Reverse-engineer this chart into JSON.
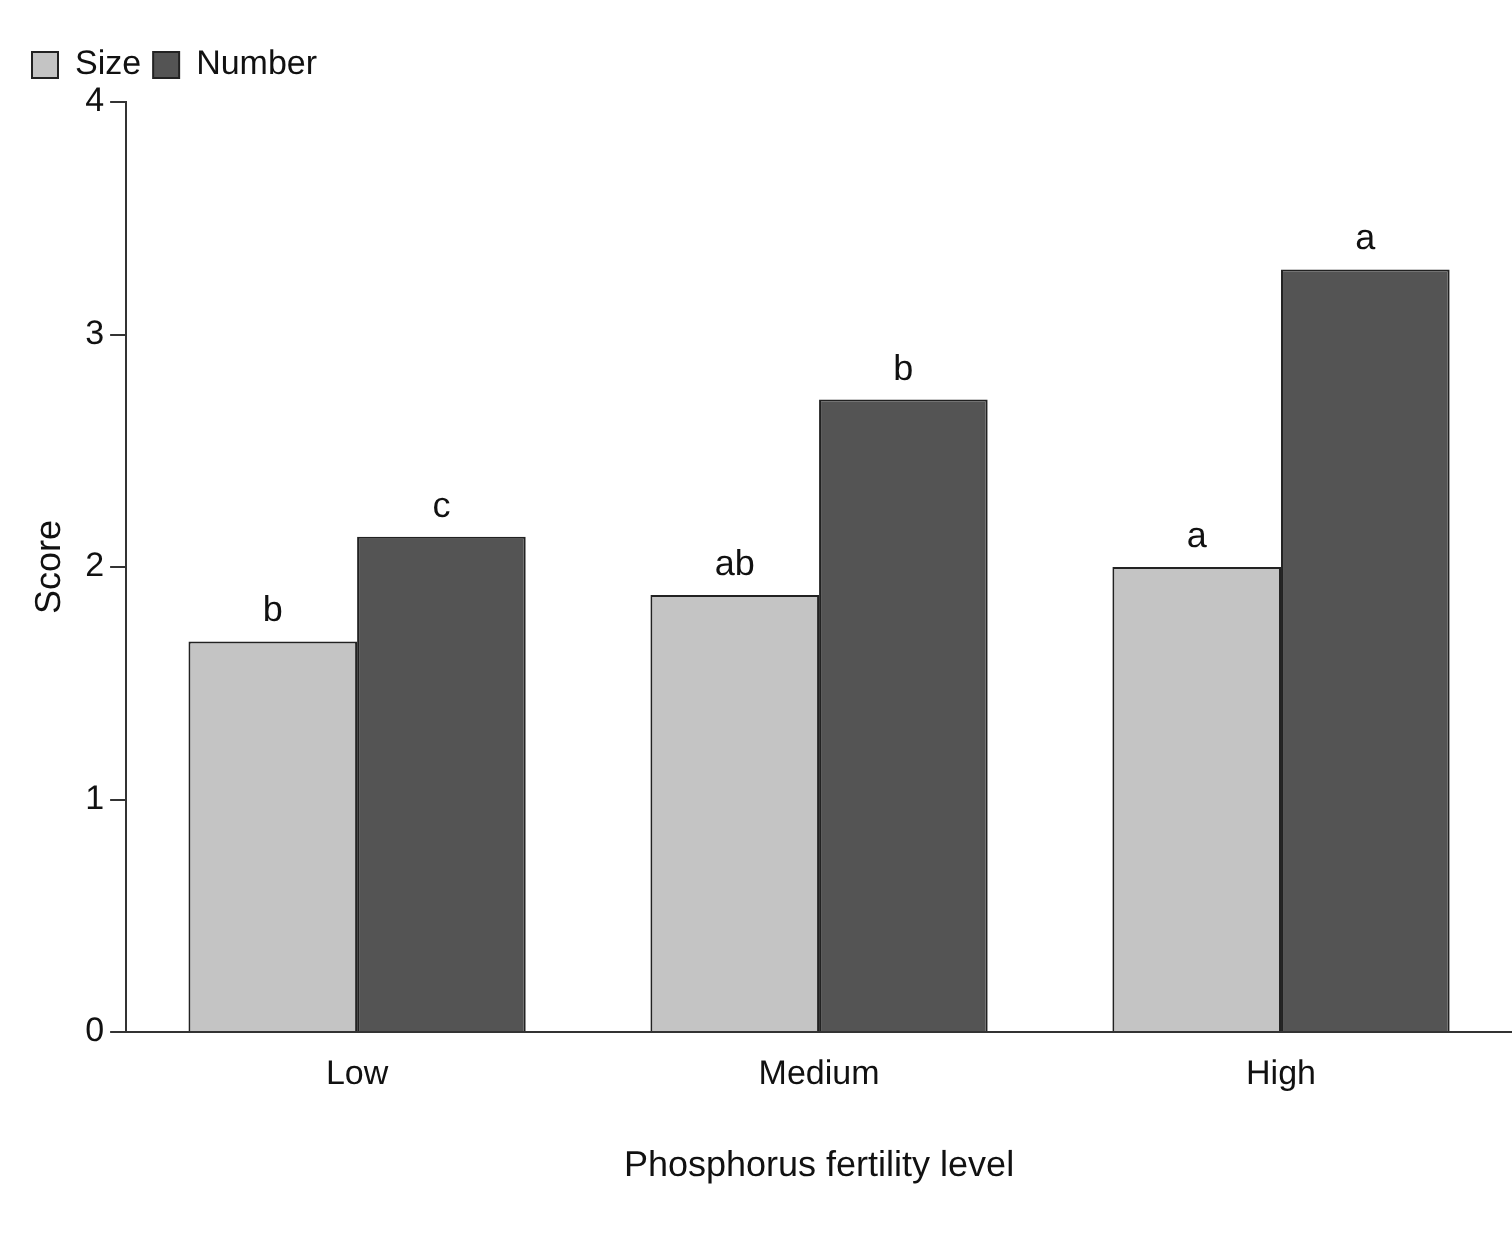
{
  "chart_data": {
    "type": "bar",
    "xlabel": "Phosphorus fertility level",
    "ylabel": "Score",
    "categories": [
      "Low",
      "Medium",
      "High"
    ],
    "series": [
      {
        "name": "Size",
        "color": "#c4c4c4",
        "values": [
          1.68,
          1.88,
          2.0
        ],
        "value_labels": [
          "b",
          "ab",
          "a"
        ]
      },
      {
        "name": "Number",
        "color": "#545454",
        "values": [
          2.13,
          2.72,
          3.28
        ],
        "value_labels": [
          "c",
          "b",
          "a"
        ]
      }
    ],
    "ylim": [
      0,
      4
    ],
    "yticks": [
      0,
      1,
      2,
      3,
      4
    ],
    "grid": false,
    "legend": "top left"
  }
}
